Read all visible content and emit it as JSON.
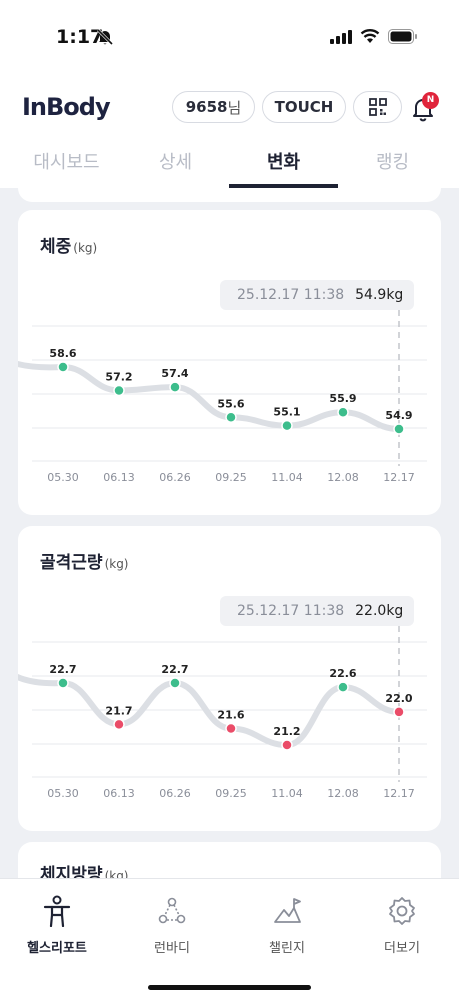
{
  "status": {
    "time": "1:17"
  },
  "header": {
    "logo": "InBody",
    "user_id": "9658",
    "user_suffix": "님",
    "touch_label": "TOUCH",
    "notification_badge": "N"
  },
  "tabs": [
    "대시보드",
    "상세",
    "변화",
    "랭킹"
  ],
  "active_tab": "변화",
  "cards": {
    "previous_title": "",
    "next_title": "체지방량",
    "next_unit": "(kg)"
  },
  "chart_data": [
    {
      "type": "line",
      "title": "체중",
      "unit": "(kg)",
      "tooltip": {
        "datetime": "25.12.17 11:38",
        "value": "54.9kg"
      },
      "categories": [
        "05.30",
        "06.13",
        "06.26",
        "09.25",
        "11.04",
        "12.08",
        "12.17"
      ],
      "values": [
        58.6,
        57.2,
        57.4,
        55.6,
        55.1,
        55.9,
        54.9
      ],
      "point_colors": [
        "#3dbd8c",
        "#3dbd8c",
        "#3dbd8c",
        "#3dbd8c",
        "#3dbd8c",
        "#3dbd8c",
        "#3dbd8c"
      ],
      "grid": true
    },
    {
      "type": "line",
      "title": "골격근량",
      "unit": "(kg)",
      "tooltip": {
        "datetime": "25.12.17 11:38",
        "value": "22.0kg"
      },
      "categories": [
        "05.30",
        "06.13",
        "06.26",
        "09.25",
        "11.04",
        "12.08",
        "12.17"
      ],
      "values": [
        22.7,
        21.7,
        22.7,
        21.6,
        21.2,
        22.6,
        22.0
      ],
      "point_colors": [
        "#3dbd8c",
        "#ea4c68",
        "#3dbd8c",
        "#ea4c68",
        "#ea4c68",
        "#3dbd8c",
        "#ea4c68"
      ],
      "grid": true
    }
  ],
  "bottom_nav": [
    {
      "label": "헬스리포트",
      "icon": "health-report-icon",
      "active": true
    },
    {
      "label": "런바디",
      "icon": "runbody-icon",
      "active": false
    },
    {
      "label": "챌린지",
      "icon": "challenge-icon",
      "active": false
    },
    {
      "label": "더보기",
      "icon": "gear-icon",
      "active": false
    }
  ],
  "colors": {
    "primary": "#1e2233",
    "good": "#3dbd8c",
    "bad": "#ea4c68",
    "line": "#dcdfe4",
    "badge": "#e0243b"
  }
}
